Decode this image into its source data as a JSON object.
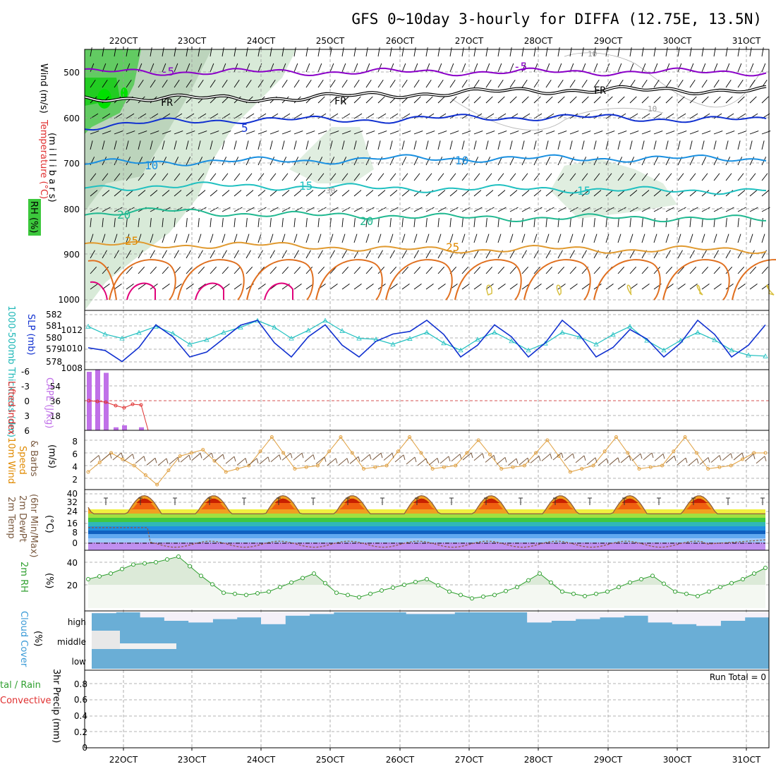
{
  "title": "GFS 0~10day 3-hourly for DIFFA (12.75E, 13.5N)",
  "days": [
    "22OCT",
    "23OCT",
    "24OCT",
    "25OCT",
    "26OCT",
    "27OCT",
    "28OCT",
    "29OCT",
    "30OCT",
    "31OCT"
  ],
  "colors": {
    "purple": "#8a00c8",
    "blue": "#1030d0",
    "cyan": "#20c0c0",
    "teal": "#20b890",
    "orange": "#e08a00",
    "rh_green": "#3cc83c",
    "cape": "#c070e8",
    "li": "#e03030",
    "wind": "#e0a040",
    "barb": "#7a5a40",
    "temp_line": "#8a5a40",
    "rh2": "#30a030",
    "cloud": "#6aaed6"
  },
  "panels": {
    "upper": {
      "labels": [
        {
          "t": "Wind (m/s)",
          "c": "#000"
        },
        {
          "t": "Temperature (°C)",
          "c": "#e03030"
        },
        {
          "t": "RH (%)",
          "c": "#000"
        }
      ],
      "axis_label": "(m i l l i b a r s)",
      "yticks": [
        "500",
        "600",
        "700",
        "800",
        "900",
        "1000"
      ],
      "contour_labels": [
        "-5",
        "-5",
        "FR",
        "FR",
        "FR",
        "5",
        "10",
        "10",
        "15",
        "15",
        "20",
        "20",
        "25",
        "25",
        "10",
        "10",
        "30"
      ]
    },
    "thick": {
      "left": "1000-500mb Thickness (dm)",
      "right": "SLP (mb)",
      "yticks_left": [
        "582",
        "581",
        "580",
        "579",
        "578"
      ],
      "yticks_right": [
        "1012",
        "1010",
        "1008"
      ]
    },
    "cape": {
      "left": "Lifted Index",
      "right": "CAPE (J/kg)",
      "yticks_left": [
        "-6",
        "-3",
        "0",
        "3",
        "6"
      ],
      "yticks_right": [
        "54",
        "36",
        "18"
      ]
    },
    "wind10": {
      "l1": "10m Wind",
      "l2": "Speed",
      "l3": "& Barbs",
      "unit": "(m/s)",
      "yticks": [
        "8",
        "6",
        "4",
        "2"
      ]
    },
    "temp2m": {
      "l1": "2m Temp",
      "l2": "2m DewPt",
      "l3": "(6hr Min/Max)",
      "unit": "(°C)",
      "yticks": [
        "40",
        "32",
        "24",
        "16",
        "8",
        "0"
      ]
    },
    "rh2m": {
      "l1": "2m RH",
      "unit": "(%)",
      "yticks": [
        "40",
        "20"
      ]
    },
    "cloud": {
      "l1": "Cloud Cover",
      "unit": "(%)",
      "levels": [
        "high",
        "middle",
        "low"
      ]
    },
    "precip": {
      "l1": "3hr Precip (mm)",
      "l2": "tal / Rain",
      "l3": "Convective",
      "run_total": "Run Total = 0",
      "yticks": [
        "0.8",
        "0.6",
        "0.4",
        "0.2",
        "0"
      ]
    }
  },
  "chart_data": [
    {
      "type": "line",
      "name": "upper-air cross section",
      "ylabel": "millibars",
      "ylim": [
        1000,
        450
      ],
      "x": [
        "22OCT",
        "23OCT",
        "24OCT",
        "25OCT",
        "26OCT",
        "27OCT",
        "28OCT",
        "29OCT",
        "30OCT",
        "31OCT"
      ],
      "isotherms_mb": [
        {
          "name": "-5",
          "values": [
            500,
            500,
            500,
            500,
            500,
            500,
            500,
            500,
            500,
            500
          ]
        },
        {
          "name": "FR",
          "values": [
            560,
            555,
            560,
            555,
            550,
            545,
            540,
            540,
            540,
            540
          ]
        },
        {
          "name": "5",
          "values": [
            620,
            610,
            605,
            605,
            605,
            600,
            600,
            600,
            605,
            605
          ]
        },
        {
          "name": "10",
          "values": [
            700,
            698,
            695,
            695,
            690,
            690,
            690,
            690,
            690,
            690
          ]
        },
        {
          "name": "15",
          "values": [
            755,
            750,
            750,
            752,
            755,
            757,
            755,
            760,
            760,
            760
          ]
        },
        {
          "name": "20",
          "values": [
            810,
            805,
            810,
            815,
            815,
            820,
            820,
            820,
            820,
            825
          ]
        },
        {
          "name": "25",
          "values": [
            880,
            880,
            880,
            882,
            890,
            890,
            888,
            890,
            890,
            890
          ]
        }
      ]
    },
    {
      "type": "line",
      "title": "",
      "categories": [
        "21.5",
        "22.0",
        "22.5",
        "23.0",
        "23.5",
        "24.0",
        "24.5",
        "25.0",
        "25.5",
        "26.0",
        "26.5",
        "27.0",
        "27.5",
        "28.0",
        "28.5",
        "29.0",
        "29.5",
        "30.0",
        "30.5",
        "31.0",
        "31.5"
      ],
      "series": [
        {
          "name": "1000-500mb Thickness (dm)",
          "values": [
            581,
            580,
            581,
            579.5,
            580.5,
            581.5,
            580,
            581.5,
            580,
            579.5,
            580.5,
            579,
            580.5,
            579,
            580.5,
            579.5,
            581,
            579,
            580.5,
            579,
            578.5
          ]
        },
        {
          "name": "SLP (mb)",
          "values": [
            1010,
            1008.5,
            1012.5,
            1009,
            1011,
            1013,
            1009,
            1012.5,
            1009,
            1011.5,
            1013,
            1009,
            1012.5,
            1009,
            1013,
            1009,
            1012,
            1009,
            1013,
            1009,
            1012.5
          ]
        }
      ]
    },
    {
      "type": "bar",
      "series": [
        {
          "name": "CAPE (J/kg)",
          "values": [
            58,
            60,
            57,
            3,
            5,
            0,
            3,
            0
          ]
        },
        {
          "name": "Lifted Index",
          "values": [
            -1,
            -1,
            -1,
            1,
            2,
            0,
            1,
            6
          ]
        }
      ],
      "categories": [
        "21.5",
        "21.6",
        "21.75",
        "21.9",
        "22.0",
        "22.1",
        "22.25",
        "22.4"
      ]
    },
    {
      "type": "line",
      "series": [
        {
          "name": "10m Wind Speed (m/s)",
          "values": [
            3,
            6,
            4,
            1,
            5.5,
            6.5,
            3,
            4,
            8.5,
            3.5,
            4,
            8.5,
            3.5,
            4,
            8.5,
            3.5,
            4,
            8,
            3.5,
            4,
            8,
            3,
            4,
            8.5,
            3.5,
            4,
            8.5,
            3.5,
            4,
            6
          ]
        }
      ]
    },
    {
      "type": "area",
      "series": [
        {
          "name": "2m Temp (°C)",
          "values": [
            32,
            32,
            33,
            34,
            36,
            34,
            33,
            35,
            34,
            33,
            35,
            34,
            33,
            34,
            33,
            33,
            34,
            33,
            32,
            33,
            34,
            33,
            33,
            34,
            33,
            33,
            32,
            24
          ]
        },
        {
          "name": "2m DewPt (°C)",
          "values": [
            14,
            14,
            13,
            12,
            8,
            6,
            4,
            4,
            3,
            4,
            4,
            5,
            3,
            6,
            5,
            4,
            3,
            4,
            4,
            5,
            3,
            5,
            6,
            4,
            3,
            5,
            6,
            8
          ]
        }
      ]
    },
    {
      "type": "area",
      "series": [
        {
          "name": "2m RH (%)",
          "values": [
            25,
            30,
            38,
            40,
            45,
            28,
            13,
            11,
            14,
            22,
            30,
            13,
            9,
            15,
            20,
            25,
            14,
            8,
            11,
            18,
            30,
            14,
            10,
            14,
            22,
            28,
            14,
            10,
            18,
            25,
            35
          ]
        }
      ]
    },
    {
      "type": "area",
      "series": [
        {
          "name": "Cloud Cover high (%)",
          "values": [
            95,
            100,
            70,
            50,
            40,
            60,
            70,
            30,
            80,
            90,
            100,
            100,
            100,
            90,
            90,
            100,
            100,
            100,
            40,
            50,
            60,
            70,
            80,
            40,
            30,
            20,
            50,
            70
          ]
        }
      ]
    },
    {
      "type": "bar",
      "series": [
        {
          "name": "3hr Precip (mm)",
          "values": [
            0,
            0,
            0,
            0,
            0,
            0,
            0,
            0,
            0,
            0
          ]
        }
      ],
      "ylim": [
        0,
        1
      ]
    }
  ]
}
